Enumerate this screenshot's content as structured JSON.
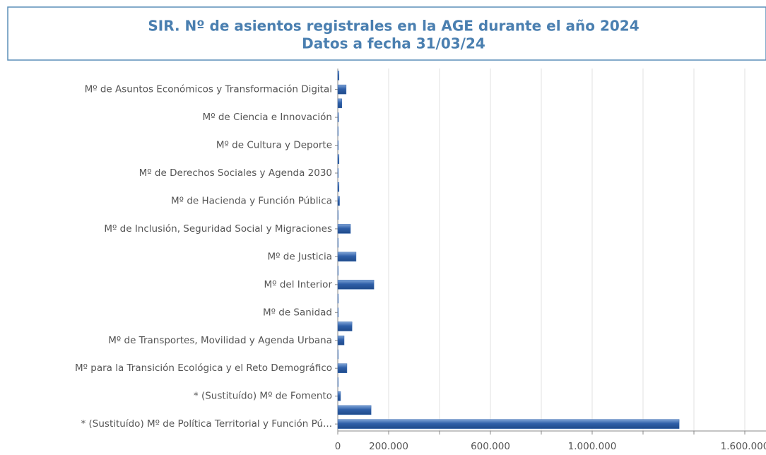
{
  "chart_data": {
    "type": "barh",
    "title": "SIR. Nº de asientos registrales en la AGE durante el año 2024",
    "subtitle": "Datos a fecha 31/03/24",
    "categories": [
      null,
      "Mº de Asuntos Económicos y Transformación Digital",
      null,
      "Mº de Ciencia e Innovación",
      null,
      "Mº de Cultura y Deporte",
      null,
      "Mº de Derechos Sociales y Agenda 2030",
      null,
      "Mº de Hacienda y Función Pública",
      null,
      "Mº de Inclusión, Seguridad Social y Migraciones",
      null,
      "Mº de Justicia",
      null,
      "Mº del Interior",
      null,
      "Mº de Sanidad",
      null,
      "Mº de Transportes, Movilidad y Agenda Urbana",
      null,
      "Mº para la Transición Ecológica y el Reto Demográfico",
      null,
      "* (Sustituído) Mº de Fomento",
      null,
      "* (Sustituído) Mº de Política Territorial y Función Pú..."
    ],
    "values": [
      5000,
      33000,
      16000,
      3000,
      1000,
      2000,
      5000,
      2000,
      5000,
      7000,
      1000,
      50000,
      500,
      72000,
      500,
      142000,
      2000,
      2000,
      56000,
      25000,
      500,
      36000,
      500,
      11000,
      131000,
      1342000
    ],
    "color": "#3a6bb0",
    "xlim": [
      0,
      1600000
    ],
    "xticks": [
      {
        "value": 0,
        "label": "0"
      },
      {
        "value": 200000,
        "label": "200.000"
      },
      {
        "value": 400000,
        "label": null
      },
      {
        "value": 600000,
        "label": "600.000"
      },
      {
        "value": 800000,
        "label": null
      },
      {
        "value": 1000000,
        "label": "1.000.000"
      },
      {
        "value": 1200000,
        "label": null
      },
      {
        "value": 1400000,
        "label": null
      },
      {
        "value": 1600000,
        "label": "1.600.000"
      }
    ],
    "grid": true
  }
}
